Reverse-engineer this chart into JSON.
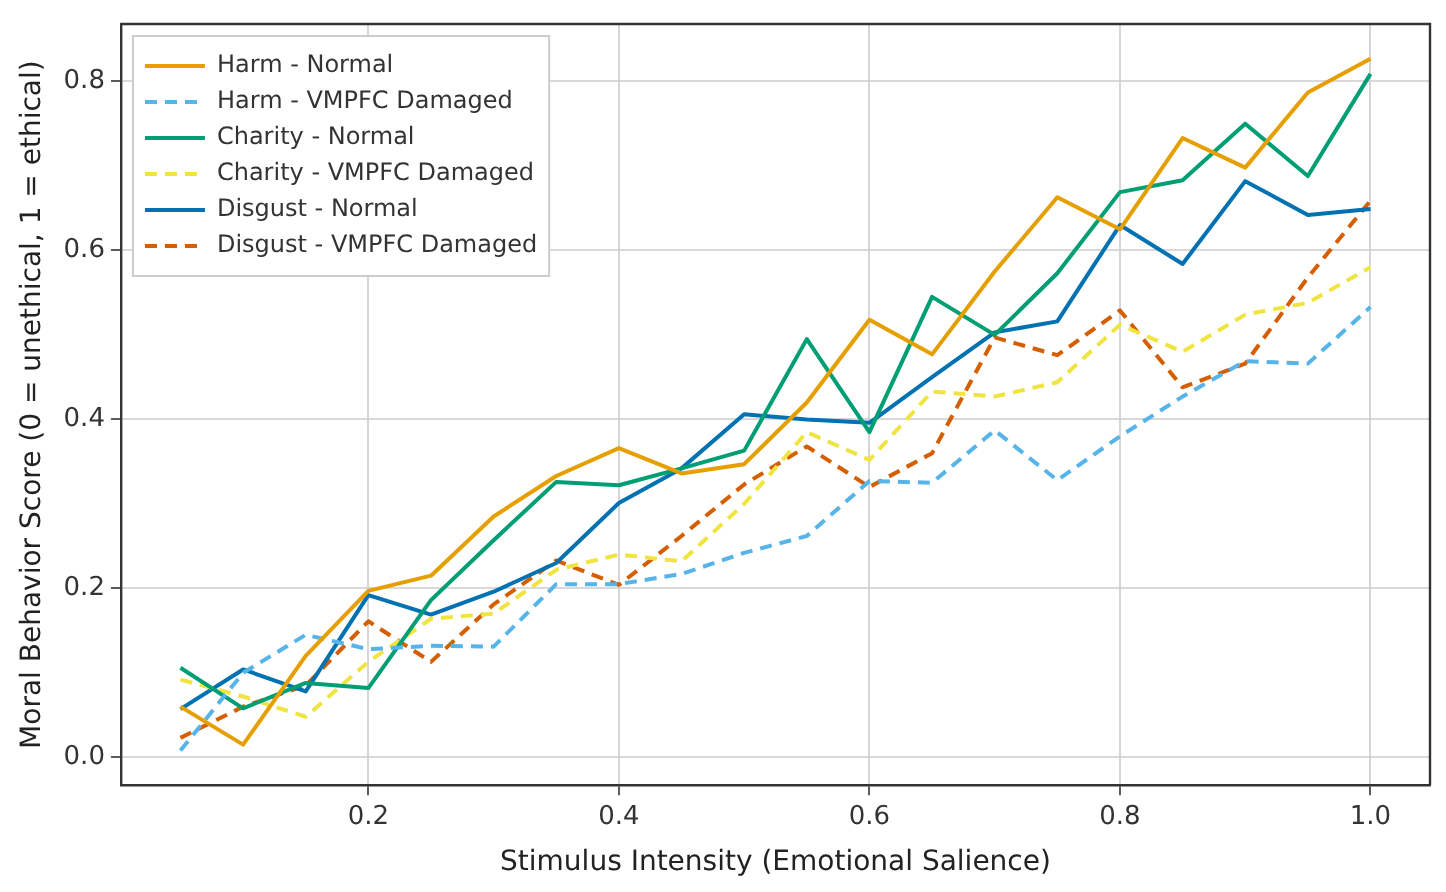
{
  "chart_data": {
    "type": "line",
    "xlabel": "Stimulus Intensity (Emotional Salience)",
    "ylabel": "Moral Behavior Score (0 = unethical, 1 = ethical)",
    "x": [
      0.05,
      0.1,
      0.15,
      0.2,
      0.25,
      0.3,
      0.35,
      0.4,
      0.45,
      0.5,
      0.55,
      0.6,
      0.65,
      0.7,
      0.75,
      0.8,
      0.85,
      0.9,
      0.95,
      1.0
    ],
    "series": [
      {
        "name": "Harm - Normal",
        "color": "#e69f00",
        "line_style": "solid",
        "values": [
          0.06,
          0.015,
          0.12,
          0.197,
          0.215,
          0.285,
          0.333,
          0.366,
          0.336,
          0.347,
          0.42,
          0.518,
          0.477,
          0.575,
          0.663,
          0.625,
          0.733,
          0.698,
          0.787,
          0.827
        ]
      },
      {
        "name": "Harm - VMPFC Damaged",
        "color": "#56b4e9",
        "line_style": "dashed",
        "values": [
          0.008,
          0.1,
          0.145,
          0.128,
          0.132,
          0.131,
          0.205,
          0.205,
          0.217,
          0.242,
          0.262,
          0.327,
          0.325,
          0.387,
          0.328,
          0.38,
          0.427,
          0.469,
          0.466,
          0.533
        ]
      },
      {
        "name": "Charity - Normal",
        "color": "#009e73",
        "line_style": "solid",
        "values": [
          0.106,
          0.058,
          0.088,
          0.082,
          0.186,
          0.257,
          0.326,
          0.322,
          0.342,
          0.363,
          0.495,
          0.385,
          0.545,
          0.5,
          0.573,
          0.669,
          0.683,
          0.75,
          0.688,
          0.809
        ]
      },
      {
        "name": "Charity - VMPFC Damaged",
        "color": "#f0e442",
        "line_style": "dashed",
        "values": [
          0.092,
          0.072,
          0.048,
          0.113,
          0.164,
          0.17,
          0.222,
          0.24,
          0.232,
          0.3,
          0.385,
          0.352,
          0.433,
          0.427,
          0.444,
          0.512,
          0.48,
          0.524,
          0.538,
          0.58
        ]
      },
      {
        "name": "Disgust - Normal",
        "color": "#0072b2",
        "line_style": "solid",
        "values": [
          0.057,
          0.104,
          0.078,
          0.192,
          0.169,
          0.196,
          0.23,
          0.301,
          0.342,
          0.406,
          0.4,
          0.396,
          0.45,
          0.503,
          0.516,
          0.63,
          0.584,
          0.682,
          0.642,
          0.649
        ]
      },
      {
        "name": "Disgust - VMPFC Damaged",
        "color": "#d55e00",
        "line_style": "dashed",
        "values": [
          0.023,
          0.06,
          0.085,
          0.161,
          0.113,
          0.181,
          0.233,
          0.204,
          0.262,
          0.323,
          0.368,
          0.32,
          0.36,
          0.497,
          0.476,
          0.529,
          0.438,
          0.466,
          0.568,
          0.659
        ]
      }
    ],
    "xlim": [
      0.0025,
      1.0475
    ],
    "xticks": [
      {
        "value": 0.2,
        "label": "0.2"
      },
      {
        "value": 0.4,
        "label": "0.4"
      },
      {
        "value": 0.6,
        "label": "0.6"
      },
      {
        "value": 0.8,
        "label": "0.8"
      },
      {
        "value": 1.0,
        "label": "1.0"
      }
    ],
    "ylim": [
      -0.033,
      0.868
    ],
    "yticks": [
      {
        "value": 0,
        "label": "0.0"
      },
      {
        "value": 0.2,
        "label": "0.2"
      },
      {
        "value": 0.4,
        "label": "0.4"
      },
      {
        "value": 0.6,
        "label": "0.6"
      },
      {
        "value": 0.8,
        "label": "0.8"
      }
    ],
    "grid": true,
    "legend": "top left",
    "marker": "none"
  }
}
